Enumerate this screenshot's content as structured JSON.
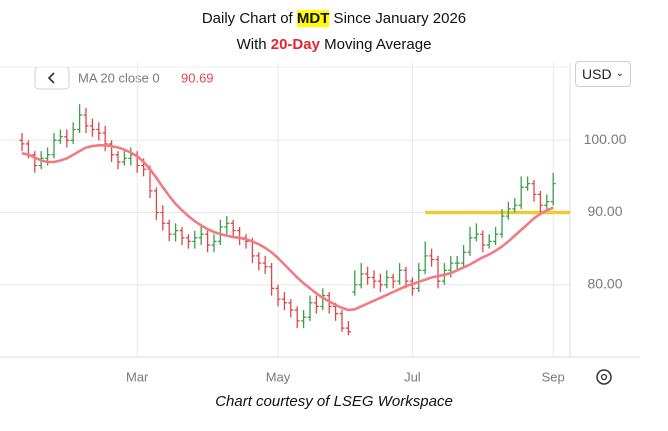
{
  "chart_data": {
    "type": "ohlc",
    "title_lines": [
      [
        "Daily Chart of ",
        "MDT",
        " Since January 2026"
      ],
      [
        "With ",
        "20-Day",
        " Moving Average"
      ]
    ],
    "caption": "Chart courtesy of LSEG Workspace",
    "currency": "USD",
    "categories": [
      null,
      null,
      null,
      null,
      null,
      null,
      null,
      null,
      null,
      null,
      null,
      null,
      null,
      null,
      null,
      null,
      null,
      null,
      "Mar",
      null,
      null,
      null,
      null,
      null,
      null,
      null,
      null,
      null,
      null,
      null,
      null,
      null,
      null,
      null,
      null,
      null,
      null,
      null,
      null,
      null,
      "May",
      null,
      null,
      null,
      null,
      null,
      null,
      null,
      null,
      null,
      null,
      null,
      null,
      null,
      null,
      null,
      null,
      null,
      null,
      null,
      null,
      "Jul",
      null,
      null,
      null,
      null,
      null,
      null,
      null,
      null,
      null,
      null,
      null,
      null,
      null,
      null,
      null,
      null,
      null,
      null,
      null,
      null,
      null,
      "Sep"
    ],
    "up_color": "#3a9e4a",
    "down_color": "#e0454a",
    "ohlc": {
      "open": [
        100,
        99.5,
        98,
        96.5,
        97.5,
        98,
        100,
        100.5,
        100,
        101.5,
        103.5,
        102,
        101.5,
        101,
        99.5,
        98,
        97,
        97.5,
        98,
        96.5,
        96,
        93,
        90,
        88.5,
        87,
        87.5,
        86.5,
        86,
        86.5,
        87,
        85.5,
        86,
        88,
        88.5,
        87.5,
        86.5,
        86,
        84,
        83,
        82.5,
        79.5,
        78,
        77.5,
        76.5,
        75,
        75.5,
        77.5,
        77,
        78.5,
        77,
        76,
        74,
        79,
        80,
        81.5,
        81,
        80.5,
        80,
        81,
        80.5,
        82,
        80.5,
        79.5,
        82,
        84,
        83.5,
        80.5,
        82,
        83,
        83,
        84.5,
        86.5,
        87,
        85.5,
        86,
        87,
        89.5,
        90.5,
        91,
        93.5,
        94,
        92.5,
        91,
        91.5
      ],
      "high": [
        101,
        100,
        98.5,
        98.5,
        99,
        101,
        101.5,
        101.5,
        102.5,
        105,
        104.5,
        103,
        102.5,
        102,
        100,
        98.5,
        98.5,
        99,
        98.5,
        97.5,
        96.5,
        93.5,
        91,
        89,
        88.5,
        88,
        87,
        87.5,
        88,
        87.5,
        87,
        89,
        89.5,
        89,
        88,
        87,
        86.5,
        84.5,
        84,
        83,
        80,
        79,
        78,
        77,
        76.5,
        78.5,
        78.5,
        79.5,
        79,
        77.5,
        76.5,
        75,
        82,
        83,
        82.5,
        82,
        81.5,
        82,
        81.5,
        83,
        82.5,
        81,
        83,
        86,
        85,
        84,
        83,
        84,
        84,
        85.5,
        88,
        88.5,
        87.5,
        87,
        88,
        90.5,
        91.5,
        92,
        95,
        95,
        94.5,
        93,
        92.5,
        95.5
      ],
      "low": [
        98.5,
        97.5,
        95.5,
        96,
        96.5,
        97.5,
        99.5,
        99,
        99.5,
        101,
        101,
        100.5,
        100,
        98.5,
        97,
        96,
        96.5,
        96.5,
        95.5,
        95,
        92,
        89,
        87.5,
        86,
        86,
        85.5,
        85,
        85,
        85.5,
        84.5,
        84.5,
        85.5,
        87,
        86.5,
        85.5,
        85,
        83,
        82,
        81.5,
        78.5,
        77,
        76.5,
        75.5,
        74,
        74,
        75,
        76,
        76.5,
        76,
        75,
        73.5,
        73,
        78.5,
        79.5,
        80,
        79.5,
        79,
        79.5,
        79.5,
        80,
        79.5,
        78.5,
        79,
        81.5,
        82.5,
        79.5,
        80,
        81,
        82,
        82.5,
        84,
        86,
        84.5,
        85,
        85.5,
        86.5,
        89,
        90,
        90.5,
        93,
        91.5,
        90,
        90.5,
        91
      ],
      "close": [
        99.5,
        98,
        96.5,
        97.5,
        98,
        100,
        100.5,
        100,
        101.5,
        103.5,
        102,
        101.5,
        101,
        99.5,
        98,
        97,
        97.5,
        98,
        96.5,
        96,
        93,
        90,
        88.5,
        87,
        87.5,
        86.5,
        86,
        86.5,
        87,
        85.5,
        86,
        88,
        88.5,
        87.5,
        86.5,
        86,
        84,
        83,
        82.5,
        79.5,
        78,
        77.5,
        76.5,
        75,
        75.5,
        77.5,
        77,
        78.5,
        77,
        76,
        74,
        73.5,
        80,
        81.5,
        81,
        80.5,
        80,
        81,
        80.5,
        82,
        80.5,
        79.5,
        82,
        84,
        83.5,
        80.5,
        82,
        83,
        83,
        84.5,
        86.5,
        87,
        85.5,
        86,
        87,
        89.5,
        90.5,
        91,
        93.5,
        94,
        92.5,
        91,
        91.5,
        94
      ]
    },
    "ma": {
      "name": "MA 20 close 0",
      "color": "#f07c82",
      "values": [
        98.2,
        98,
        97.6,
        97.2,
        97,
        97,
        97.2,
        97.5,
        98,
        98.5,
        99,
        99.2,
        99.3,
        99.3,
        99.2,
        99,
        98.7,
        98.3,
        97.8,
        97,
        96,
        94.8,
        93.5,
        92.3,
        91.2,
        90.3,
        89.5,
        88.8,
        88.2,
        87.7,
        87.3,
        87,
        86.8,
        86.6,
        86.5,
        86.3,
        86,
        85.6,
        85.1,
        84.5,
        83.7,
        82.8,
        81.9,
        81,
        80.2,
        79.5,
        78.8,
        78.2,
        77.7,
        77.2,
        76.8,
        76.5,
        76.6,
        77,
        77.4,
        77.8,
        78.2,
        78.6,
        79,
        79.4,
        79.8,
        80.1,
        80.4,
        80.7,
        81,
        81.2,
        81.4,
        81.6,
        82,
        82.4,
        82.8,
        83.3,
        83.8,
        84.2,
        84.7,
        85.3,
        86,
        86.8,
        87.6,
        88.4,
        89.2,
        89.8,
        90.3,
        90.69
      ]
    },
    "hline": {
      "value": 90,
      "from": 63,
      "color": "#e8cc3a"
    },
    "ylim": [
      70,
      110.7
    ],
    "yticks": [
      {
        "value": 80,
        "label": "80.00"
      },
      {
        "value": 90,
        "label": "90.00"
      },
      {
        "value": 100,
        "label": "100.00"
      }
    ],
    "grid": true
  }
}
